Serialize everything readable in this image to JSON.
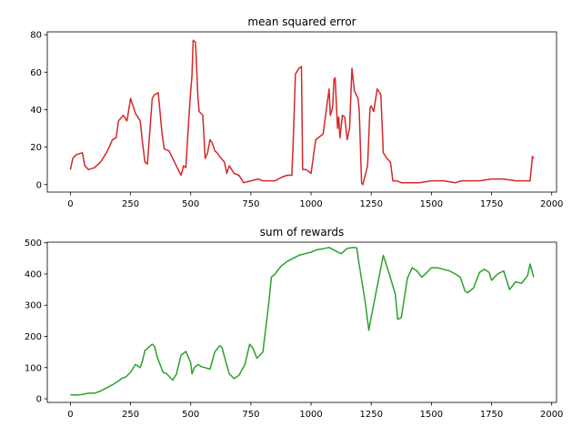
{
  "chart_data": [
    {
      "type": "line",
      "title": "mean squared error",
      "xlabel": "",
      "ylabel": "",
      "xlim": [
        -96,
        2020
      ],
      "ylim": [
        -4,
        81.5
      ],
      "xticks": [
        0,
        250,
        500,
        750,
        1000,
        1250,
        1500,
        1750,
        2000
      ],
      "yticks": [
        0,
        20,
        40,
        60,
        80
      ],
      "grid": false,
      "color": "#d62728",
      "series": [
        {
          "x": [
            0,
            10,
            25,
            50,
            60,
            75,
            100,
            125,
            150,
            175,
            190,
            200,
            220,
            235,
            250,
            255,
            270,
            290,
            300,
            310,
            320,
            340,
            350,
            365,
            375,
            380,
            390,
            410,
            440,
            460,
            470,
            480,
            490,
            500,
            505,
            510,
            520,
            530,
            535,
            550,
            560,
            570,
            580,
            590,
            600,
            610,
            620,
            640,
            650,
            660,
            680,
            700,
            720,
            750,
            780,
            800,
            850,
            880,
            900,
            920,
            925,
            935,
            950,
            960,
            965,
            980,
            1000,
            1015,
            1020,
            1050,
            1075,
            1080,
            1085,
            1090,
            1095,
            1100,
            1110,
            1115,
            1120,
            1130,
            1140,
            1150,
            1160,
            1170,
            1180,
            1195,
            1200,
            1210,
            1215,
            1225,
            1235,
            1245,
            1250,
            1260,
            1275,
            1290,
            1300,
            1310,
            1315,
            1330,
            1340,
            1350,
            1355,
            1375,
            1380,
            1400,
            1450,
            1500,
            1550,
            1600,
            1625,
            1650,
            1700,
            1750,
            1800,
            1850,
            1900,
            1910,
            1920,
            1925
          ],
          "y": [
            8,
            14,
            16,
            17,
            10,
            8,
            9,
            12,
            17,
            24,
            25,
            34,
            37,
            34,
            46,
            44,
            38,
            34,
            22,
            12,
            11,
            46,
            48,
            49,
            35,
            28,
            19,
            18,
            10,
            5,
            10,
            9,
            31,
            50,
            58,
            77,
            76,
            46,
            39,
            37,
            14,
            17,
            24,
            22,
            18,
            17,
            15,
            12,
            6,
            10,
            6,
            5,
            1,
            2,
            3,
            2,
            2,
            4,
            5,
            5,
            20,
            59,
            62,
            63,
            8,
            8,
            6,
            20,
            24,
            27,
            51,
            37,
            39,
            42,
            56,
            57,
            30,
            36,
            25,
            37,
            36,
            24,
            30,
            62,
            50,
            46,
            40,
            1,
            0,
            5,
            10,
            41,
            42,
            39,
            51,
            48,
            17,
            15,
            14,
            12,
            2,
            2,
            2,
            1,
            1,
            1,
            1,
            2,
            2,
            1,
            2,
            2,
            2,
            3,
            3,
            2,
            2,
            2,
            15,
            14
          ]
        }
      ]
    },
    {
      "type": "line",
      "title": "sum of rewards",
      "xlabel": "",
      "ylabel": "",
      "xlim": [
        -96,
        2020
      ],
      "ylim": [
        -11.5,
        502
      ],
      "xticks": [
        0,
        250,
        500,
        750,
        1000,
        1250,
        1500,
        1750,
        2000
      ],
      "yticks": [
        0,
        100,
        200,
        300,
        400,
        500
      ],
      "grid": false,
      "color": "#2ca02c",
      "series": [
        {
          "x": [
            0,
            25,
            50,
            75,
            100,
            125,
            150,
            175,
            200,
            215,
            230,
            250,
            270,
            290,
            300,
            310,
            325,
            340,
            350,
            360,
            375,
            385,
            400,
            425,
            440,
            460,
            480,
            500,
            505,
            515,
            530,
            545,
            560,
            580,
            600,
            620,
            630,
            640,
            660,
            680,
            700,
            725,
            745,
            760,
            775,
            800,
            825,
            835,
            850,
            875,
            900,
            925,
            950,
            975,
            1000,
            1025,
            1050,
            1075,
            1100,
            1125,
            1150,
            1175,
            1190,
            1200,
            1225,
            1240,
            1250,
            1275,
            1300,
            1325,
            1350,
            1360,
            1375,
            1400,
            1420,
            1440,
            1460,
            1475,
            1500,
            1525,
            1550,
            1575,
            1600,
            1620,
            1640,
            1650,
            1675,
            1700,
            1720,
            1740,
            1750,
            1775,
            1800,
            1825,
            1850,
            1875,
            1900,
            1910,
            1925
          ],
          "y": [
            13,
            12,
            14,
            18,
            18,
            25,
            35,
            45,
            57,
            66,
            70,
            85,
            110,
            100,
            123,
            155,
            165,
            175,
            168,
            135,
            105,
            85,
            80,
            60,
            78,
            140,
            152,
            115,
            80,
            100,
            110,
            103,
            100,
            95,
            150,
            170,
            165,
            135,
            80,
            65,
            75,
            110,
            175,
            160,
            130,
            150,
            310,
            390,
            400,
            425,
            440,
            450,
            460,
            465,
            470,
            478,
            481,
            485,
            475,
            465,
            482,
            485,
            484,
            430,
            310,
            220,
            262,
            360,
            460,
            400,
            335,
            255,
            260,
            385,
            420,
            410,
            390,
            400,
            420,
            420,
            415,
            410,
            400,
            390,
            345,
            340,
            355,
            405,
            415,
            405,
            380,
            400,
            410,
            350,
            375,
            370,
            395,
            432,
            390
          ]
        }
      ]
    }
  ]
}
